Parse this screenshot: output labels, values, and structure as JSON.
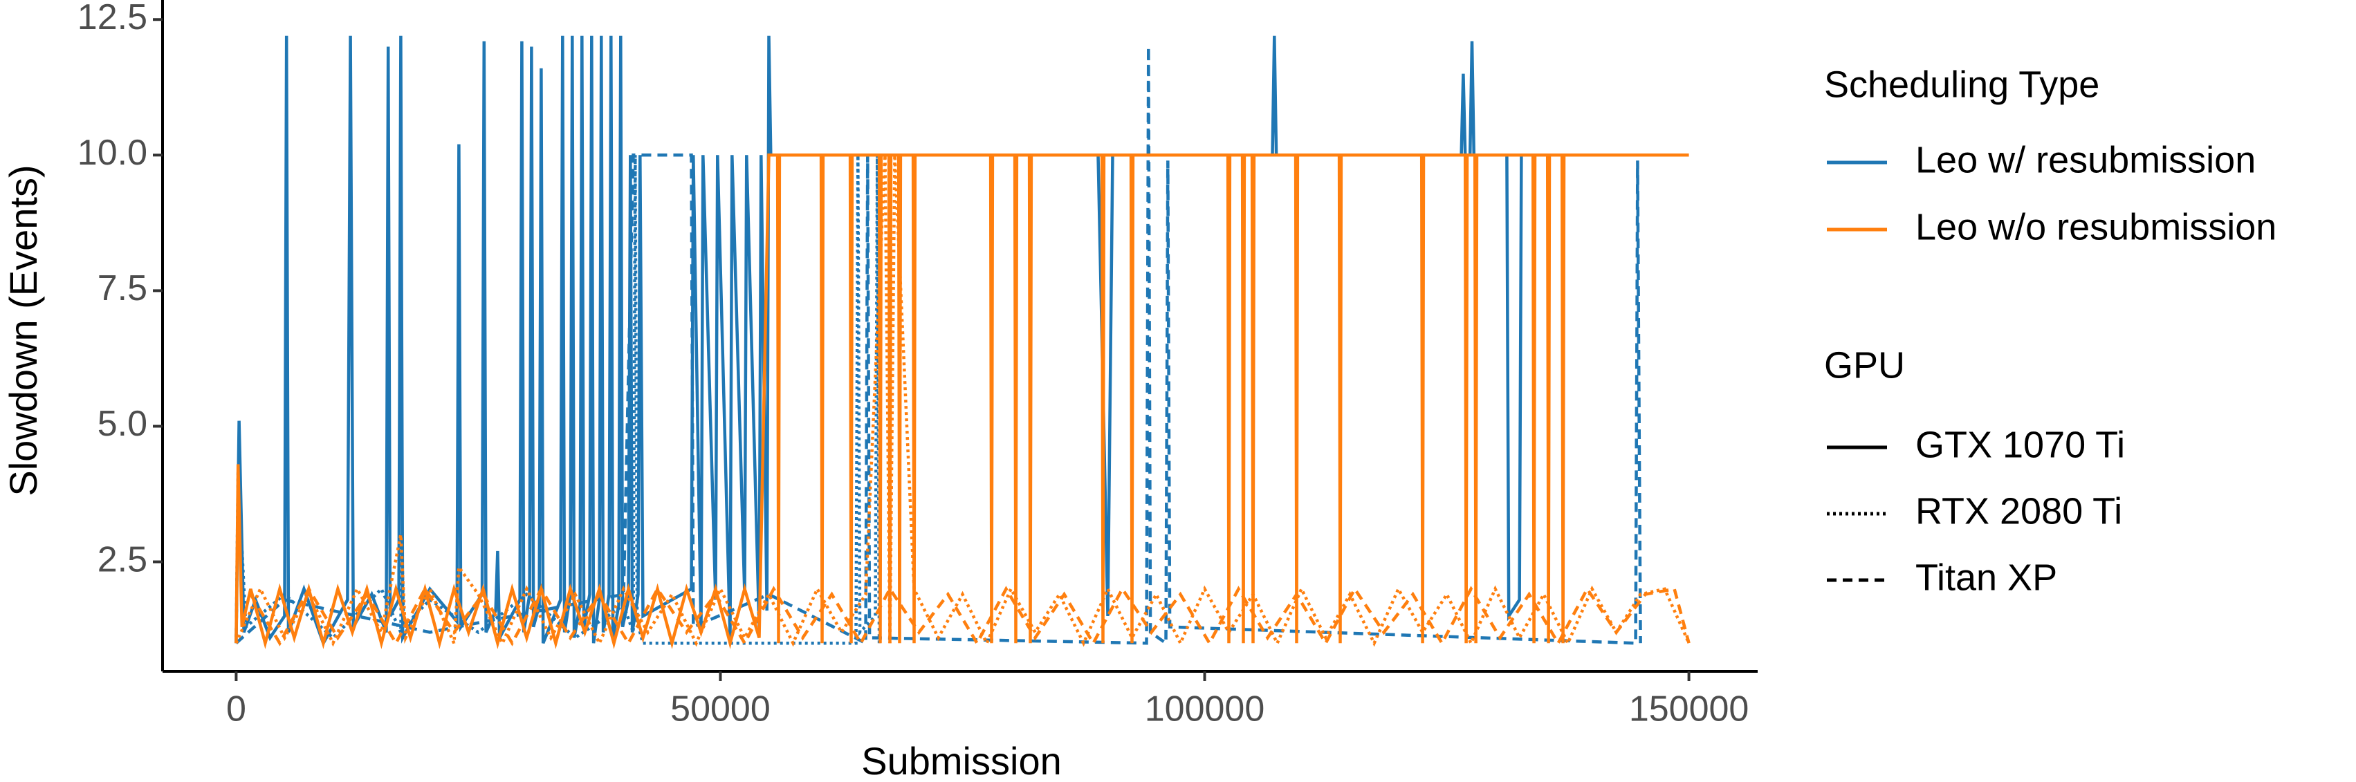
{
  "chart_data": {
    "type": "line",
    "xlabel": "Submission",
    "ylabel": "Slowdown (Events)",
    "xlim": [
      -7600,
      157100
    ],
    "ylim": [
      0.48,
      12.86
    ],
    "xticks": [
      0,
      50000,
      100000,
      150000
    ],
    "yticks": [
      2.5,
      {
        "value": 5,
        "label": "5.0"
      },
      7.5,
      {
        "value": 10,
        "label": "10.0"
      },
      12.5
    ],
    "color_legend": {
      "title": "Scheduling Type",
      "entries": [
        {
          "name": "Leo w/ resubmission",
          "color": "#1f77b4"
        },
        {
          "name": "Leo w/o resubmission",
          "color": "#ff7f0e"
        }
      ]
    },
    "linetype_legend": {
      "title": "GPU",
      "entries": [
        {
          "name": "GTX 1070 Ti",
          "linetype": "solid"
        },
        {
          "name": "RTX 2080 Ti",
          "linetype": "dotted"
        },
        {
          "name": "Titan XP",
          "linetype": "dashed"
        }
      ]
    },
    "series": [
      {
        "scheduling": 0,
        "gpu": 0,
        "x": [
          0,
          300,
          800,
          2000,
          3500,
          5000,
          5200,
          5400,
          7000,
          9000,
          11500,
          11800,
          12100,
          14000,
          15500,
          15700,
          15900,
          16800,
          17000,
          17200,
          20000,
          22800,
          23000,
          23200,
          25400,
          25600,
          25800,
          26800,
          27000,
          27200,
          29300,
          29500,
          29700,
          30300,
          30500,
          30700,
          31300,
          31500,
          31700,
          33500,
          33700,
          33900,
          34500,
          34700,
          34900,
          35500,
          35700,
          35900,
          36500,
          36700,
          36900,
          37500,
          37700,
          37900,
          38500,
          38700,
          38900,
          39500,
          39700,
          39900,
          40500,
          40700,
          40900,
          41500,
          41700,
          42000,
          47000,
          47200,
          48000,
          48200,
          49500,
          49700,
          51000,
          51200,
          52500,
          52700,
          54000,
          54200,
          54800,
          55000,
          55200,
          89000,
          90000,
          90500,
          107000,
          107200,
          107400,
          126500,
          126700,
          126900,
          127400,
          127600,
          127800,
          131200,
          131400,
          132500,
          132700,
          133000
        ],
        "values": [
          1.0,
          5.1,
          1.2,
          1.8,
          1.1,
          1.5,
          12.2,
          1.2,
          2.0,
          1.0,
          1.8,
          12.2,
          1.3,
          1.9,
          1.2,
          12.0,
          1.5,
          1.8,
          12.2,
          1.1,
          2.0,
          1.4,
          10.2,
          1.3,
          1.9,
          12.1,
          1.2,
          1.6,
          2.7,
          1.1,
          1.8,
          12.1,
          1.2,
          1.9,
          12.0,
          1.3,
          1.7,
          11.6,
          1.0,
          1.8,
          12.2,
          1.2,
          1.9,
          12.2,
          1.1,
          1.7,
          12.2,
          1.3,
          1.9,
          12.2,
          1.0,
          1.8,
          12.2,
          1.2,
          1.9,
          12.2,
          1.1,
          1.7,
          12.2,
          1.3,
          1.8,
          10.0,
          1.2,
          1.9,
          10.0,
          1.5,
          2.0,
          10.0,
          1.2,
          10.0,
          1.8,
          10.0,
          1.1,
          10.0,
          1.9,
          10.0,
          1.3,
          10.0,
          1.6,
          12.2,
          10.0,
          10.0,
          1.5,
          10.0,
          10.0,
          12.2,
          10.0,
          10.0,
          11.5,
          10.0,
          10.0,
          12.1,
          10.0,
          10.0,
          1.5,
          1.8,
          10.0,
          10.0
        ]
      },
      {
        "scheduling": 0,
        "gpu": 1,
        "x": [
          0,
          200,
          1000,
          5000,
          10000,
          15000,
          17000,
          17100,
          17300,
          20000,
          25000,
          30000,
          35000,
          40000,
          41000,
          41200,
          41400,
          42000,
          64000,
          64200,
          64400,
          66000,
          66200,
          66400
        ],
        "values": [
          1.0,
          4.2,
          1.3,
          1.9,
          1.1,
          2.0,
          1.2,
          3.0,
          1.3,
          1.8,
          1.2,
          1.9,
          1.1,
          1.7,
          1.2,
          10.0,
          1.4,
          1.0,
          1.0,
          10.0,
          1.2,
          1.5,
          10.0,
          1.0
        ]
      },
      {
        "scheduling": 0,
        "gpu": 2,
        "x": [
          0,
          5000,
          20000,
          40000,
          41000,
          47000,
          47200,
          55000,
          65000,
          65200,
          65400,
          94000,
          94200,
          94400,
          96000,
          96200,
          96400,
          144500,
          144700,
          145000
        ],
        "values": [
          1.0,
          1.8,
          1.2,
          1.9,
          10.0,
          10.0,
          1.3,
          1.9,
          1.0,
          10.0,
          1.1,
          1.0,
          12.0,
          1.2,
          1.0,
          9.9,
          1.3,
          1.0,
          9.9,
          1.0
        ]
      },
      {
        "scheduling": 1,
        "gpu": 1,
        "x": [
          0,
          2500,
          5000,
          7500,
          10000,
          12500,
          15000,
          17000,
          17500,
          20000,
          22500,
          23000,
          25000,
          27500,
          30000,
          32500,
          35000,
          37500,
          40000,
          42500,
          45000,
          47500,
          50000,
          52500,
          55000,
          57500,
          60000,
          62500,
          65000,
          67000,
          67500,
          68000,
          70000,
          72500,
          75000,
          77500,
          80000,
          82500,
          85000,
          87500,
          90000,
          92500,
          95000,
          97500,
          100000,
          102500,
          105000,
          107500,
          110000,
          112500,
          115000,
          117500,
          120000,
          122500,
          125000,
          127500,
          130000,
          132500,
          135000,
          137500,
          140000,
          142500,
          145000,
          147500,
          150000
        ],
        "values": [
          1.0,
          2.0,
          1.1,
          1.9,
          1.0,
          2.0,
          1.2,
          3.0,
          1.1,
          2.0,
          1.0,
          2.4,
          1.9,
          1.0,
          2.0,
          1.1,
          1.9,
          1.0,
          2.0,
          1.2,
          1.9,
          1.0,
          2.0,
          1.1,
          1.9,
          1.0,
          2.0,
          1.2,
          1.9,
          10.0,
          1.0,
          10.0,
          2.0,
          1.1,
          1.9,
          1.0,
          2.0,
          1.2,
          1.9,
          1.0,
          2.0,
          1.1,
          1.9,
          1.0,
          2.0,
          1.2,
          1.9,
          1.0,
          2.0,
          1.1,
          1.9,
          1.0,
          2.0,
          1.2,
          1.9,
          1.0,
          2.0,
          1.1,
          1.9,
          1.0,
          2.0,
          1.2,
          1.9,
          2.0,
          1.0
        ]
      },
      {
        "scheduling": 1,
        "gpu": 2,
        "x": [
          1500,
          4500,
          7500,
          10500,
          13500,
          16500,
          19500,
          22500,
          25500,
          28500,
          31500,
          34500,
          37500,
          40500,
          43500,
          46500,
          49500,
          52500,
          55500,
          58500,
          61500,
          64500,
          67500,
          70500,
          73500,
          76500,
          79500,
          82500,
          85500,
          88500,
          91500,
          94500,
          97500,
          100500,
          103500,
          106500,
          109500,
          112500,
          115500,
          118500,
          121500,
          124500,
          127500,
          130500,
          133500,
          136500,
          139500,
          142500,
          145500,
          148500,
          150000
        ],
        "values": [
          1.9,
          1.0,
          2.0,
          1.1,
          1.9,
          1.0,
          2.0,
          1.2,
          1.9,
          1.0,
          2.0,
          1.1,
          1.9,
          1.0,
          2.0,
          1.2,
          1.9,
          1.0,
          2.0,
          1.1,
          1.9,
          1.0,
          2.0,
          1.2,
          1.9,
          1.0,
          2.0,
          1.1,
          1.9,
          1.0,
          2.0,
          1.2,
          1.9,
          1.0,
          2.0,
          1.1,
          1.9,
          1.0,
          2.0,
          1.2,
          1.9,
          1.0,
          2.0,
          1.1,
          1.9,
          1.0,
          2.0,
          1.2,
          1.9,
          2.0,
          1.0
        ]
      },
      {
        "scheduling": 1,
        "gpu": 0,
        "x": [
          0,
          200,
          600,
          1500,
          3000,
          4500,
          6000,
          7500,
          9000,
          10500,
          12000,
          13500,
          15000,
          16500,
          18000,
          19500,
          21000,
          22500,
          24000,
          25500,
          27000,
          28500,
          30000,
          31500,
          33000,
          34500,
          36000,
          37500,
          39000,
          40500,
          42000,
          43500,
          45000,
          46500,
          48000,
          49500,
          51000,
          52500,
          54000,
          55000,
          55900,
          56000,
          56100,
          60400,
          60500,
          60600,
          63400,
          63500,
          63600,
          66400,
          66500,
          66600,
          67400,
          67500,
          67600,
          68400,
          68500,
          68600,
          69900,
          70000,
          70100,
          77900,
          78000,
          78100,
          80400,
          80500,
          80600,
          81900,
          82000,
          82100,
          89400,
          89500,
          89600,
          92400,
          92500,
          92600,
          102400,
          102500,
          102600,
          103900,
          104000,
          104100,
          104900,
          105000,
          105100,
          109400,
          109500,
          109600,
          113900,
          114000,
          114100,
          122400,
          122500,
          122600,
          126900,
          127000,
          127100,
          127900,
          128000,
          128100,
          133900,
          134000,
          134100,
          135400,
          135500,
          135600,
          136900,
          137000,
          137100,
          150000
        ],
        "values": [
          1.0,
          4.3,
          1.3,
          2.0,
          1.0,
          2.0,
          1.1,
          2.0,
          1.0,
          2.0,
          1.2,
          2.0,
          1.0,
          2.0,
          1.1,
          2.0,
          1.0,
          2.0,
          1.2,
          2.0,
          1.0,
          2.0,
          1.1,
          2.0,
          1.0,
          2.0,
          1.2,
          2.0,
          1.0,
          2.0,
          1.1,
          2.0,
          1.0,
          2.0,
          1.2,
          2.0,
          1.0,
          2.0,
          1.1,
          10.0,
          10.0,
          1.0,
          10.0,
          10.0,
          1.0,
          10.0,
          10.0,
          1.0,
          10.0,
          10.0,
          1.0,
          10.0,
          10.0,
          1.0,
          10.0,
          10.0,
          1.0,
          10.0,
          10.0,
          1.0,
          10.0,
          10.0,
          1.0,
          10.0,
          10.0,
          1.0,
          10.0,
          10.0,
          1.0,
          10.0,
          10.0,
          1.0,
          10.0,
          10.0,
          1.0,
          10.0,
          10.0,
          1.0,
          10.0,
          10.0,
          1.0,
          10.0,
          10.0,
          1.0,
          10.0,
          10.0,
          1.0,
          10.0,
          10.0,
          1.0,
          10.0,
          10.0,
          1.0,
          10.0,
          10.0,
          1.0,
          10.0,
          10.0,
          1.0,
          10.0,
          10.0,
          1.0,
          10.0,
          10.0,
          1.0,
          10.0,
          10.0,
          1.0,
          10.0,
          10.0
        ]
      }
    ]
  }
}
